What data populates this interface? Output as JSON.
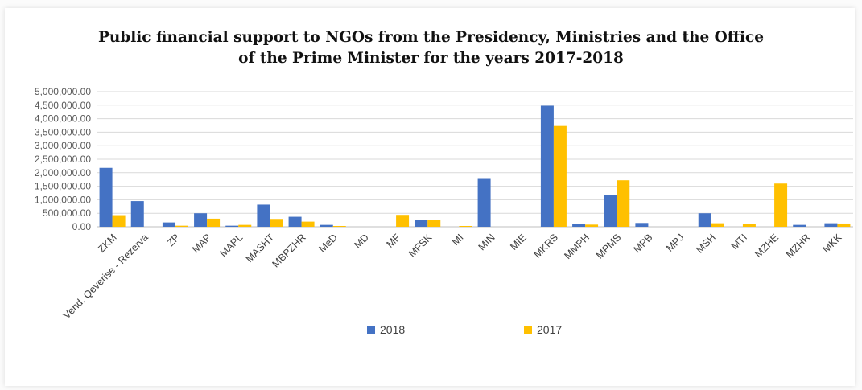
{
  "chart_data": {
    "type": "bar",
    "title_line1": "Public financial support to NGOs from the Presidency, Ministries and the Office",
    "title_line2": "of the Prime Minister for the years 2017-2018",
    "xlabel": "",
    "ylabel": "",
    "ylim": [
      0,
      5000000
    ],
    "ytick_values": [
      0,
      500000,
      1000000,
      1500000,
      2000000,
      2500000,
      3000000,
      3500000,
      4000000,
      4500000,
      5000000
    ],
    "ytick_labels": [
      "0.00",
      "500,000.00",
      "1,000,000.00",
      "1,500,000.00",
      "2,000,000.00",
      "2,500,000.00",
      "3,000,000.00",
      "3,500,000.00",
      "4,000,000.00",
      "4,500,000.00",
      "5,000,000.00"
    ],
    "grid": true,
    "legend_position": "bottom",
    "categories": [
      "ZKM",
      "Vend. Qeverise - Rezerva",
      "ZP",
      "MAP",
      "MAPL",
      "MASHT",
      "MBPZHR",
      "MeD",
      "MD",
      "MF",
      "MFSK",
      "MI",
      "MIN",
      "MIE",
      "MKRS",
      "MMPH",
      "MPMS",
      "MPB",
      "MPJ",
      "MSH",
      "MTI",
      "MZHE",
      "MZHR",
      "MKK"
    ],
    "series": [
      {
        "name": "2018",
        "color": "#4472c4",
        "values": [
          2180000,
          950000,
          160000,
          500000,
          40000,
          820000,
          370000,
          70000,
          0,
          0,
          240000,
          0,
          1800000,
          0,
          4480000,
          110000,
          1170000,
          140000,
          0,
          500000,
          0,
          0,
          70000,
          130000
        ]
      },
      {
        "name": "2017",
        "color": "#ffc000",
        "values": [
          430000,
          0,
          40000,
          300000,
          70000,
          290000,
          190000,
          30000,
          0,
          440000,
          240000,
          30000,
          0,
          0,
          3730000,
          80000,
          1720000,
          0,
          0,
          130000,
          100000,
          1600000,
          0,
          120000
        ]
      }
    ]
  }
}
